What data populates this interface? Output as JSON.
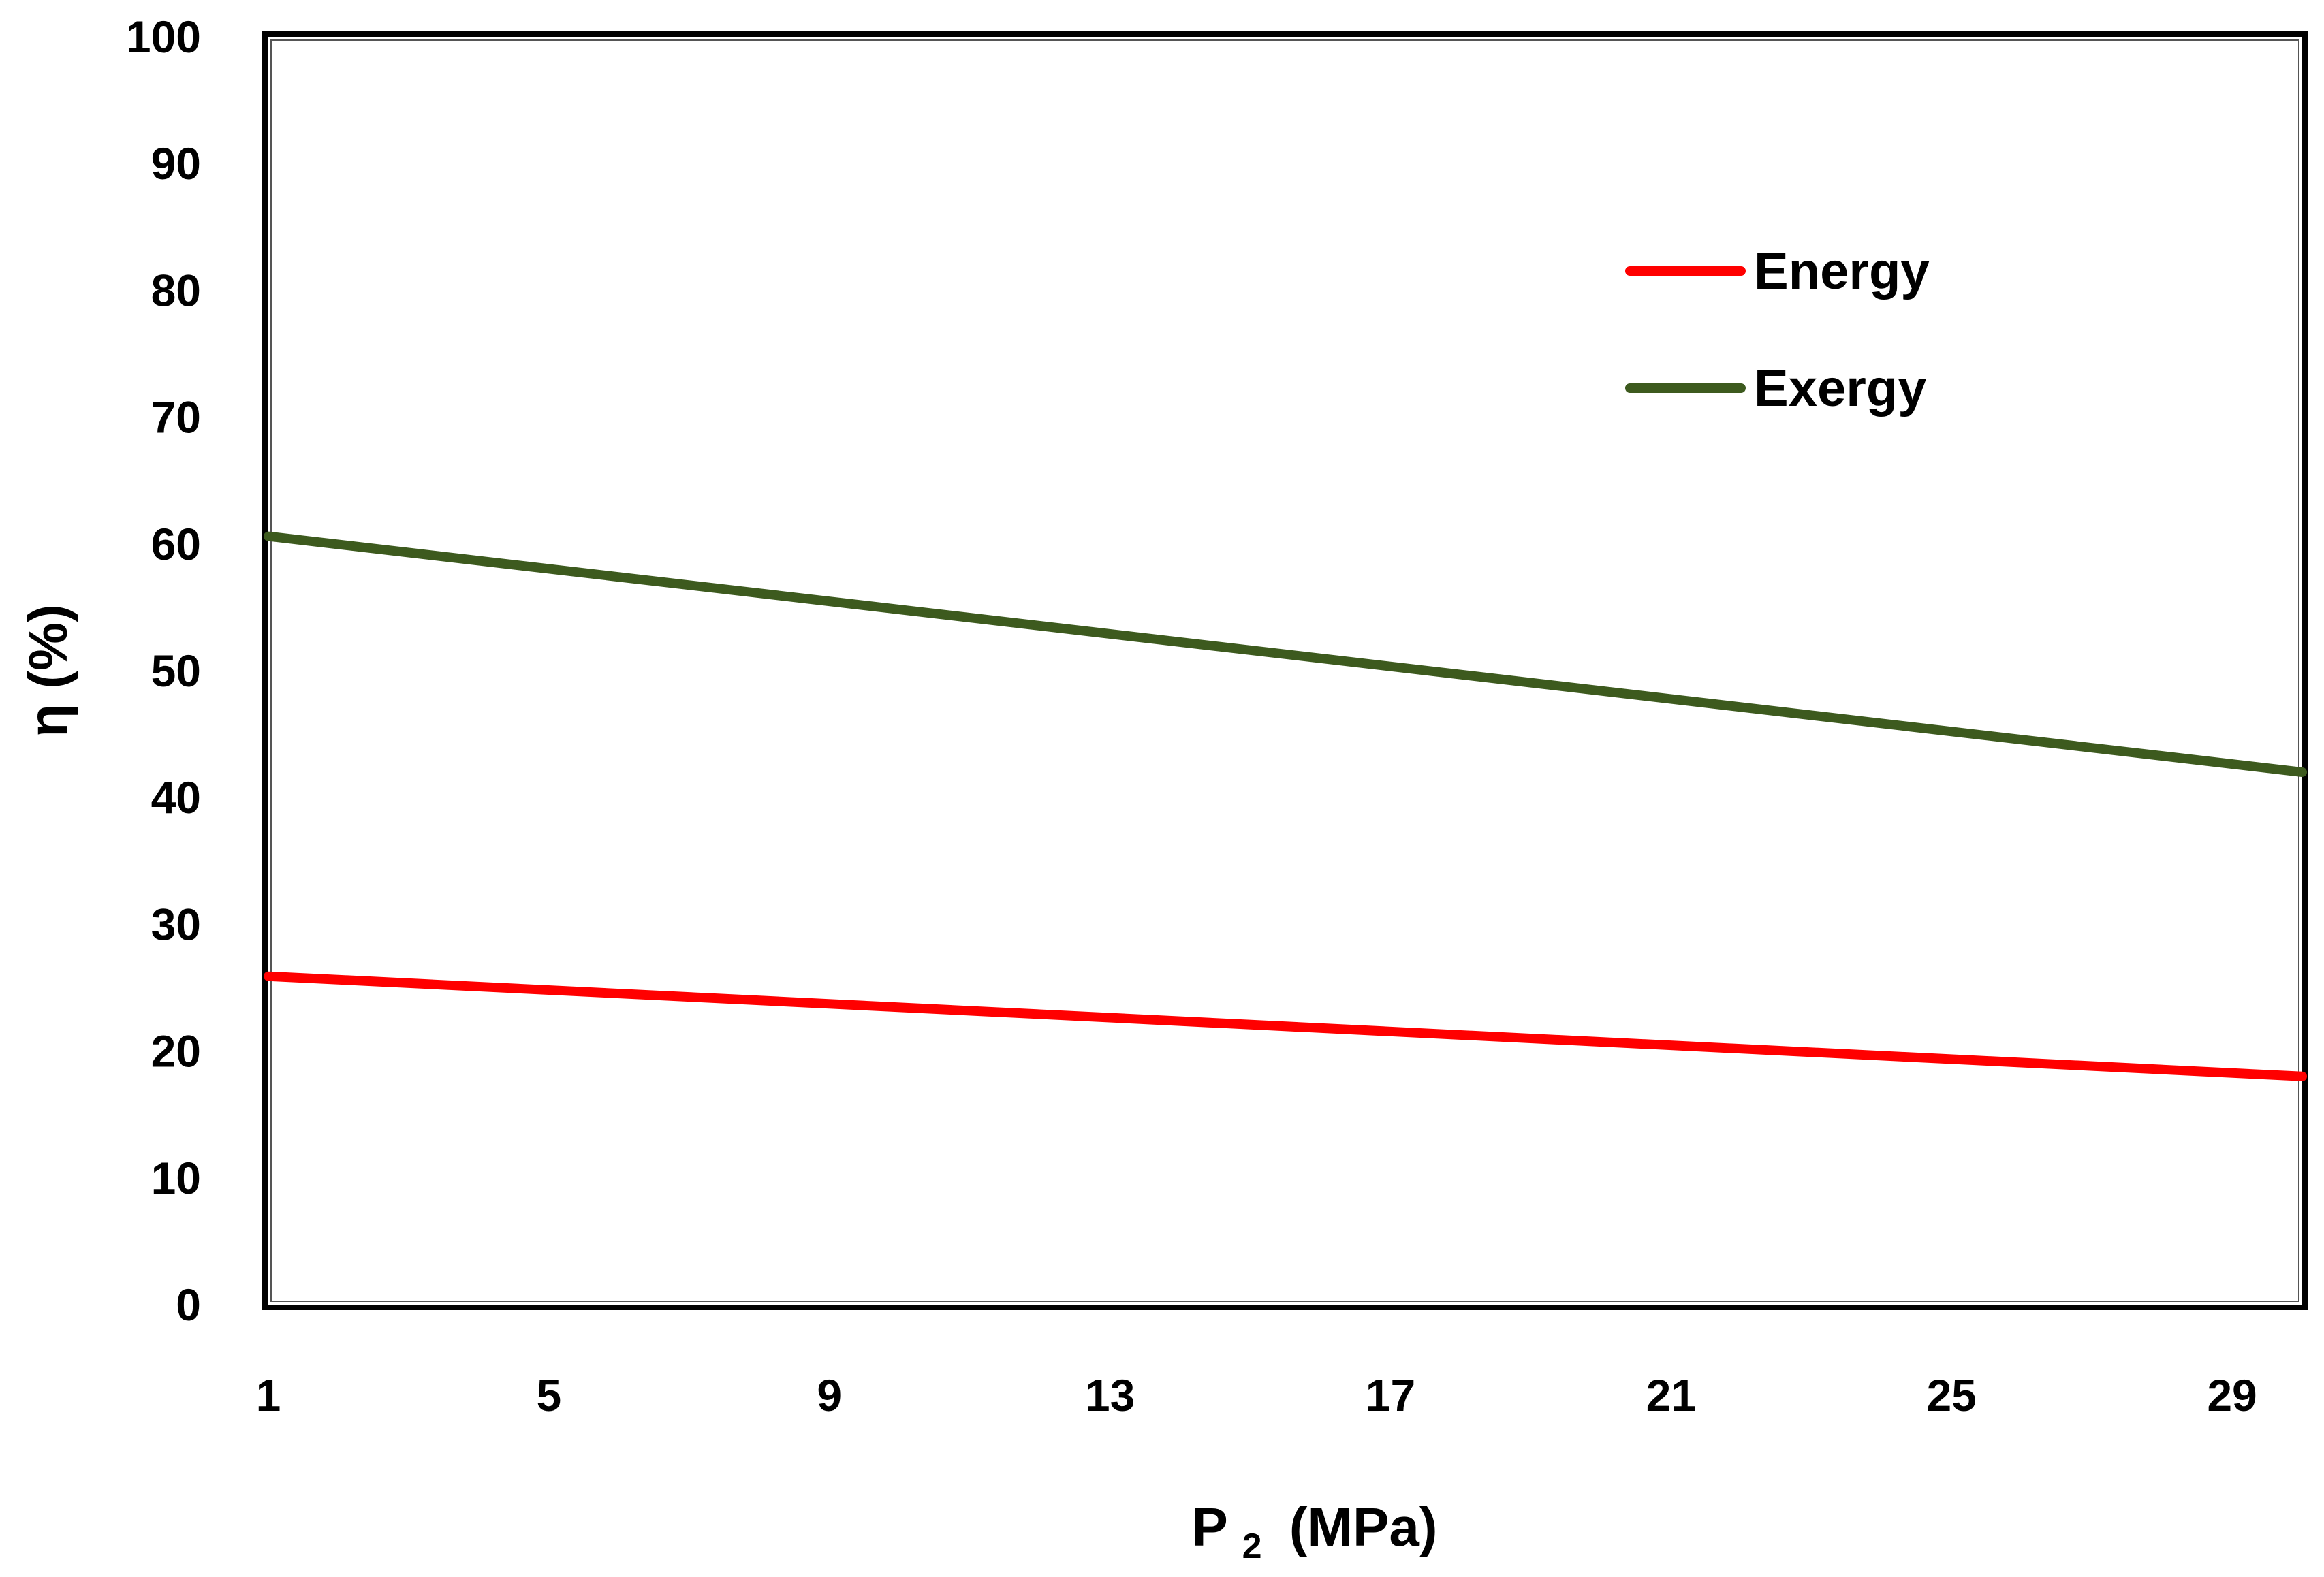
{
  "chart_data": {
    "type": "line",
    "xlabel": "P",
    "xlabel_sub": "2",
    "xlabel_unit": "(MPa)",
    "ylabel": "η (%)",
    "xlim": [
      1,
      30
    ],
    "ylim": [
      0,
      100
    ],
    "x_ticks": [
      "1",
      "5",
      "9",
      "13",
      "17",
      "21",
      "25",
      "29"
    ],
    "x_tick_values": [
      1,
      5,
      9,
      13,
      17,
      21,
      25,
      29
    ],
    "y_ticks": [
      "0",
      "10",
      "20",
      "30",
      "40",
      "50",
      "60",
      "70",
      "80",
      "90",
      "100"
    ],
    "y_tick_values": [
      0,
      10,
      20,
      30,
      40,
      50,
      60,
      70,
      80,
      90,
      100
    ],
    "grid": false,
    "legend_position": "top-right",
    "series": [
      {
        "name": "Energy",
        "color": "#ff0000",
        "x": [
          1,
          30
        ],
        "values": [
          25.9,
          18.0
        ]
      },
      {
        "name": "Exergy",
        "color": "#3d5a1e",
        "x": [
          1,
          30
        ],
        "values": [
          60.6,
          42.0
        ]
      }
    ]
  }
}
